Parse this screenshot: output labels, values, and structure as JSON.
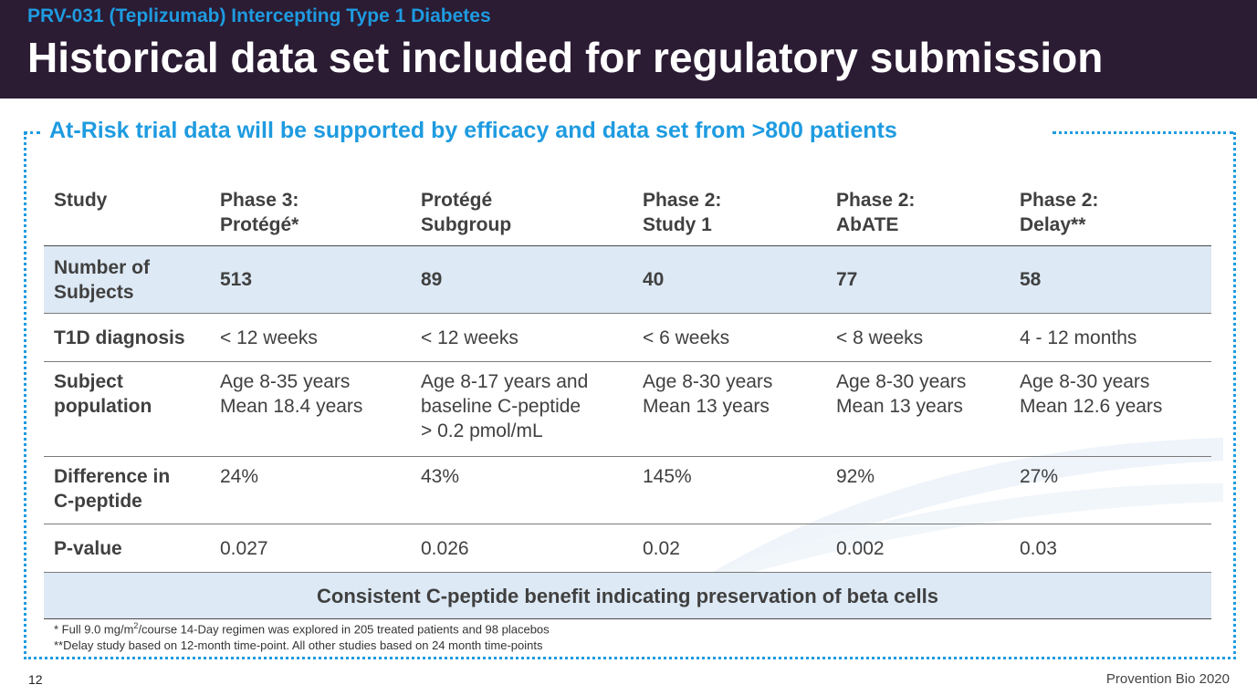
{
  "header": {
    "subtitle": "PRV-031 (Teplizumab) Intercepting Type 1 Diabetes",
    "title": "Historical data set included for regulatory submission"
  },
  "box_heading": "At-Risk trial data will be supported by efficacy and data set from >800 patients",
  "table": {
    "columns": [
      {
        "line1": "Study",
        "line2": ""
      },
      {
        "line1": "Phase 3:",
        "line2": "Protégé*"
      },
      {
        "line1": "Protégé",
        "line2": "Subgroup"
      },
      {
        "line1": "Phase 2:",
        "line2": "Study 1"
      },
      {
        "line1": "Phase 2:",
        "line2": "AbATE"
      },
      {
        "line1": "Phase 2:",
        "line2": "Delay**"
      }
    ],
    "rows": {
      "subjects": {
        "label_line1": "Number of",
        "label_line2": "Subjects",
        "values": [
          "513",
          "89",
          "40",
          "77",
          "58"
        ]
      },
      "diagnosis": {
        "label": "T1D diagnosis",
        "values": [
          "< 12 weeks",
          "< 12 weeks",
          "< 6 weeks",
          "< 8 weeks",
          "4 - 12 months"
        ]
      },
      "population": {
        "label_line1": "Subject",
        "label_line2": "population",
        "values": [
          [
            "Age 8-35 years",
            "Mean 18.4 years",
            ""
          ],
          [
            "Age 8-17 years and",
            "baseline C-peptide",
            "> 0.2 pmol/mL"
          ],
          [
            "Age 8-30 years",
            "Mean 13 years",
            ""
          ],
          [
            "Age 8-30 years",
            "Mean 13 years",
            ""
          ],
          [
            "Age 8-30 years",
            "Mean 12.6 years",
            ""
          ]
        ]
      },
      "difference": {
        "label_line1": "Difference in",
        "label_line2": "C-peptide",
        "values": [
          "24%",
          "43%",
          "145%",
          "92%",
          "27%"
        ]
      },
      "pvalue": {
        "label": "P-value",
        "values": [
          "0.027",
          "0.026",
          "0.02",
          "0.002",
          "0.03"
        ]
      }
    },
    "conclusion": "Consistent C-peptide benefit indicating preservation of beta cells"
  },
  "footnotes": {
    "note1_pre": "* Full 9.0 mg/m",
    "note1_sup": "2",
    "note1_post": "/course 14-Day regimen was explored in 205 treated patients and 98 placebos",
    "note2": "**Delay study based on 12-month time-point. All other studies based on 24 month time-points"
  },
  "footer": {
    "page_number": "12",
    "company": "Provention Bio 2020"
  },
  "colors": {
    "header_bg": "#2b1b33",
    "accent": "#1e9be0",
    "row_shade": "#dde9f5"
  }
}
